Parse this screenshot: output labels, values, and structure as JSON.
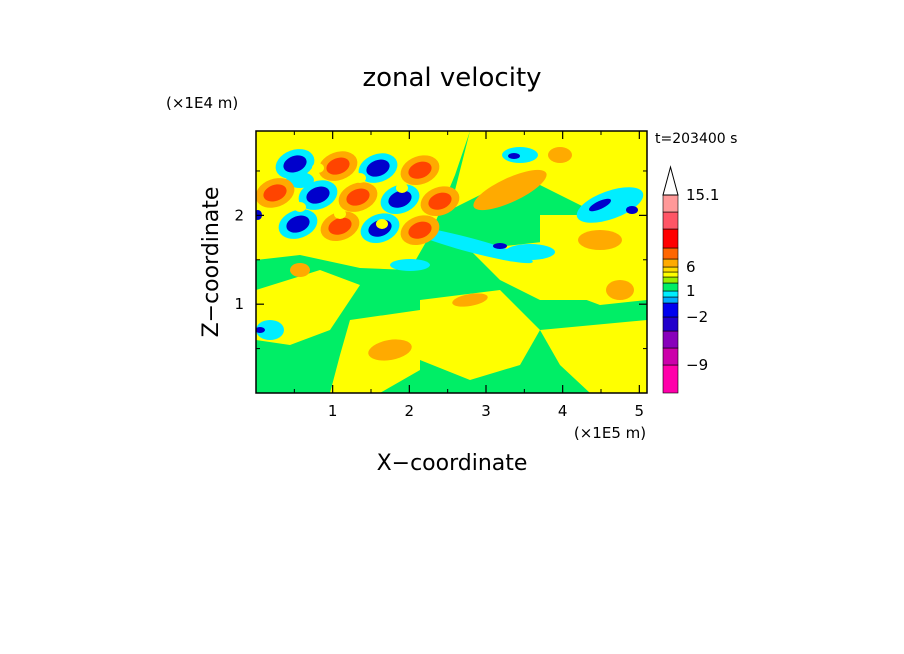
{
  "chart_data": {
    "type": "heatmap",
    "title": "zonal velocity",
    "time_label": "t=203400 s",
    "xlabel": "X−coordinate",
    "ylabel": "Z−coordinate",
    "x_unit": "(×1E5 m)",
    "y_unit": "(×1E4 m)",
    "xlim": [
      0,
      5.1
    ],
    "ylim": [
      0,
      2.95
    ],
    "x_ticks": [
      "1",
      "2",
      "3",
      "4",
      "5"
    ],
    "y_ticks": [
      "1",
      "2"
    ],
    "colorbar": {
      "labels": [
        "15.1",
        "6",
        "1",
        "−2",
        "−9"
      ],
      "colors": [
        "#ff00aa",
        "#cc00aa",
        "#8800bb",
        "#2200cc",
        "#0000ee",
        "#00aaff",
        "#00eeff",
        "#00ee66",
        "#99ee00",
        "#ffff00",
        "#ffdd00",
        "#ffaa00",
        "#ff6600",
        "#ff0000",
        "#ff5566",
        "#ff9999",
        "#ffc0c0",
        "#ffffff"
      ]
    }
  },
  "field_colors": {
    "strong_negative": "#0000cc",
    "negative": "#00eeff",
    "weak_negative": "#00ee66",
    "weak_positive": "#ffff00",
    "positive": "#ffaa00",
    "strong_positive": "#ff4400"
  }
}
